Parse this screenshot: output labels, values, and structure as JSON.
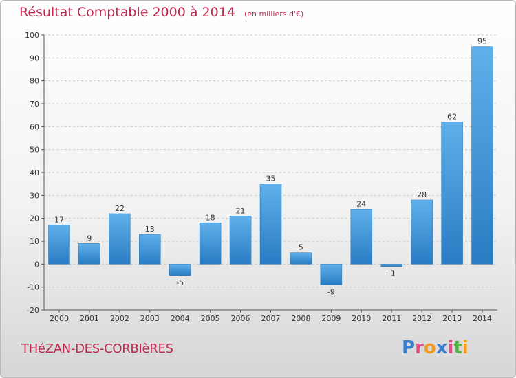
{
  "chart_data": {
    "type": "bar",
    "title": "Résultat Comptable 2000 à 2014",
    "unit_note": "(en milliers d'€)",
    "categories": [
      "2000",
      "2001",
      "2002",
      "2003",
      "2004",
      "2005",
      "2006",
      "2007",
      "2008",
      "2009",
      "2010",
      "2011",
      "2012",
      "2013",
      "2014"
    ],
    "values": [
      17,
      9,
      22,
      13,
      -5,
      18,
      21,
      35,
      5,
      -9,
      24,
      -1,
      28,
      62,
      95
    ],
    "ylim": [
      -20,
      100
    ],
    "yticks": [
      -20,
      -10,
      0,
      10,
      20,
      30,
      40,
      50,
      60,
      70,
      80,
      90,
      100
    ],
    "grid": "horizontal dashed",
    "bar_color": "#3a8fd6"
  },
  "commune_name": "THéZAN-DES-CORBIèRES",
  "logo_text": "Proxiti",
  "logo_colors": [
    "#3a7fd0",
    "#e84c88",
    "#f39a1c",
    "#3a7fd0",
    "#e84c88",
    "#56b04a",
    "#f39a1c"
  ]
}
